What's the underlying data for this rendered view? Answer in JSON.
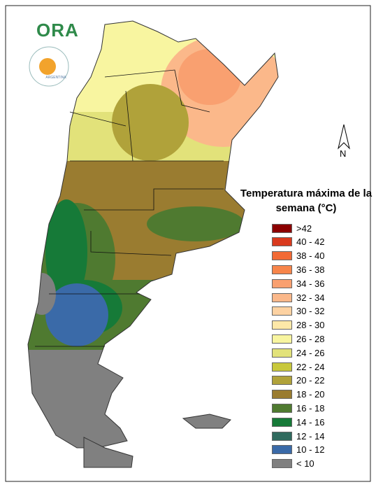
{
  "logo": "ORA",
  "logo_subtitle": "ARGENTINA",
  "north_label": "N",
  "legend": {
    "title": "Temperatura máxima de la semana (°C)",
    "items": [
      {
        "label": ">42",
        "color": "#8b0000"
      },
      {
        "label": "40 - 42",
        "color": "#d93a1e"
      },
      {
        "label": "38 - 40",
        "color": "#f26a35"
      },
      {
        "label": "36 - 38",
        "color": "#f7854a"
      },
      {
        "label": "34 - 36",
        "color": "#f9a070"
      },
      {
        "label": "32 - 34",
        "color": "#fbb88a"
      },
      {
        "label": "30 - 32",
        "color": "#fdd2a2"
      },
      {
        "label": "28 - 30",
        "color": "#fde8a8"
      },
      {
        "label": "26 - 28",
        "color": "#f8f5a0"
      },
      {
        "label": "24 - 26",
        "color": "#e2e27a"
      },
      {
        "label": "22 - 24",
        "color": "#c8c83c"
      },
      {
        "label": "20 - 22",
        "color": "#b0a23a"
      },
      {
        "label": "18 - 20",
        "color": "#9a7c30"
      },
      {
        "label": "16 - 18",
        "color": "#4f7a30"
      },
      {
        "label": "14 - 16",
        "color": "#167a38"
      },
      {
        "label": "12 - 14",
        "color": "#2f6a5e"
      },
      {
        "label": "10 - 12",
        "color": "#3a6aa8"
      },
      {
        "label": "< 10",
        "color": "#808080"
      }
    ]
  }
}
